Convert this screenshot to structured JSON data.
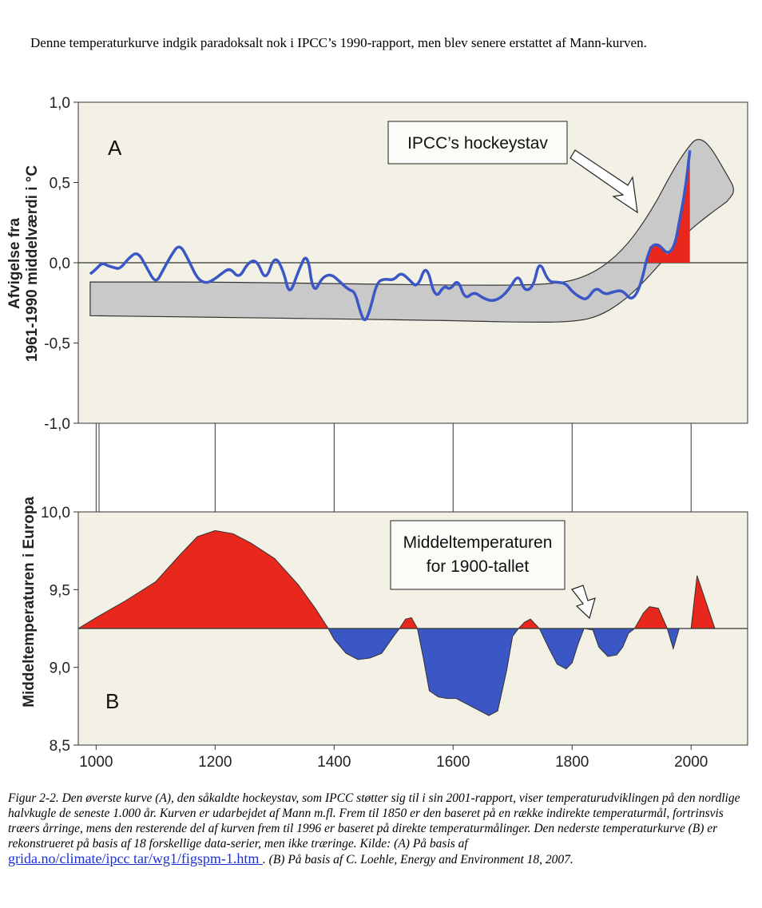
{
  "intro_text": "Denne temperaturkurve indgik paradoksalt nok i IPCC’s 1990-rapport, men blev senere erstattet af Mann-kurven.",
  "colors": {
    "panel_bg": "#f3f1e6",
    "blue": "#3b56c5",
    "red": "#e8281c",
    "band": "#c9c9c9",
    "axis": "#333333"
  },
  "chart_data": [
    {
      "type": "line",
      "panel_label": "A",
      "ylabel_line1": "Afvigelse fra",
      "ylabel_line2": "1961-1990 middelværdi i °C",
      "xlim": [
        970,
        2095
      ],
      "ylim": [
        -1.0,
        1.0
      ],
      "y_ticks": [
        1.0,
        0.5,
        0.0,
        -0.5,
        -1.0
      ],
      "y_tick_labels": [
        "1,0",
        "0,5",
        "0,0",
        "-0,5",
        "-1,0"
      ],
      "baseline": 0.0,
      "annotation": "IPCC’s hockeystav",
      "uncertainty_band": {
        "upper": [
          [
            990,
            -0.12
          ],
          [
            1200,
            -0.12
          ],
          [
            1400,
            -0.13
          ],
          [
            1600,
            -0.14
          ],
          [
            1750,
            -0.14
          ],
          [
            1820,
            -0.1
          ],
          [
            1880,
            0.05
          ],
          [
            1930,
            0.3
          ],
          [
            1970,
            0.58
          ],
          [
            1995,
            0.72
          ],
          [
            2010,
            0.78
          ],
          [
            2030,
            0.74
          ],
          [
            2060,
            0.55
          ],
          [
            2075,
            0.45
          ],
          [
            2060,
            0.38
          ]
        ],
        "lower": [
          [
            990,
            -0.33
          ],
          [
            1200,
            -0.34
          ],
          [
            1400,
            -0.35
          ],
          [
            1600,
            -0.36
          ],
          [
            1700,
            -0.37
          ],
          [
            1800,
            -0.37
          ],
          [
            1850,
            -0.33
          ],
          [
            1900,
            -0.2
          ],
          [
            1950,
            0.0
          ],
          [
            1990,
            0.18
          ],
          [
            2030,
            0.3
          ],
          [
            2060,
            0.38
          ]
        ]
      },
      "series": [
        {
          "x": [
            990,
            1000,
            1010,
            1020,
            1030,
            1040,
            1055,
            1070,
            1085,
            1100,
            1112,
            1125,
            1140,
            1155,
            1170,
            1185,
            1200,
            1210,
            1225,
            1240,
            1255,
            1270,
            1285,
            1300,
            1315,
            1325,
            1340,
            1355,
            1365,
            1380,
            1395,
            1410,
            1425,
            1435,
            1445,
            1452,
            1460,
            1472,
            1485,
            1500,
            1512,
            1525,
            1540,
            1555,
            1570,
            1585,
            1595,
            1608,
            1620,
            1635,
            1650,
            1665,
            1680,
            1695,
            1710,
            1720,
            1735,
            1745,
            1760,
            1775,
            1790,
            1800,
            1815,
            1825,
            1840,
            1855,
            1870,
            1885,
            1900,
            1915,
            1930,
            1945,
            1960,
            1972,
            1980,
            1990,
            1998
          ],
          "y": [
            -0.07,
            -0.04,
            0.0,
            -0.02,
            -0.03,
            -0.04,
            0.03,
            0.07,
            -0.03,
            -0.13,
            -0.05,
            0.04,
            0.12,
            0.02,
            -0.1,
            -0.13,
            -0.1,
            -0.07,
            -0.03,
            -0.1,
            0.0,
            0.02,
            -0.12,
            0.05,
            -0.05,
            -0.21,
            -0.05,
            0.07,
            -0.2,
            -0.09,
            -0.07,
            -0.12,
            -0.17,
            -0.18,
            -0.32,
            -0.37,
            -0.3,
            -0.12,
            -0.1,
            -0.11,
            -0.06,
            -0.1,
            -0.16,
            0.0,
            -0.23,
            -0.14,
            -0.17,
            -0.1,
            -0.23,
            -0.18,
            -0.22,
            -0.24,
            -0.22,
            -0.16,
            -0.07,
            -0.18,
            -0.15,
            0.02,
            -0.12,
            -0.12,
            -0.13,
            -0.18,
            -0.22,
            -0.23,
            -0.15,
            -0.2,
            -0.18,
            -0.17,
            -0.24,
            -0.15,
            0.1,
            0.12,
            0.05,
            0.1,
            0.25,
            0.45,
            0.7
          ]
        }
      ]
    },
    {
      "type": "area",
      "panel_label": "B",
      "ylabel_line1": "Middeltemperaturen",
      "ylabel_line2": "i Europa",
      "xlim": [
        970,
        2095
      ],
      "ylim": [
        8.5,
        10.0
      ],
      "y_ticks": [
        10.0,
        9.5,
        9.0,
        8.5
      ],
      "y_tick_labels": [
        "10,0",
        "9,5",
        "9,0",
        "8,5"
      ],
      "baseline": 9.25,
      "annotation_line1": "Middeltemperaturen",
      "annotation_line2": "for 1900-tallet",
      "x_ticks": [
        1000,
        1200,
        1400,
        1600,
        1800,
        2000
      ],
      "x_tick_labels": [
        "1000",
        "1200",
        "1400",
        "1600",
        "1800",
        "2000"
      ],
      "series": [
        {
          "x": [
            970,
            1000,
            1050,
            1100,
            1140,
            1170,
            1200,
            1230,
            1260,
            1300,
            1340,
            1370,
            1390,
            1400,
            1420,
            1440,
            1460,
            1480,
            1500,
            1510,
            1520,
            1530,
            1540,
            1550,
            1560,
            1575,
            1590,
            1605,
            1620,
            1640,
            1660,
            1675,
            1690,
            1700,
            1710,
            1720,
            1730,
            1745,
            1760,
            1775,
            1790,
            1800,
            1810,
            1820,
            1835,
            1845,
            1860,
            1875,
            1885,
            1895,
            1905,
            1920,
            1930,
            1945,
            1960,
            1970,
            1980,
            1990,
            2000,
            2010,
            2040,
            2095
          ],
          "y": [
            9.25,
            9.32,
            9.43,
            9.55,
            9.72,
            9.84,
            9.88,
            9.86,
            9.8,
            9.7,
            9.53,
            9.37,
            9.25,
            9.18,
            9.09,
            9.05,
            9.06,
            9.09,
            9.2,
            9.25,
            9.31,
            9.32,
            9.25,
            9.06,
            8.85,
            8.81,
            8.8,
            8.8,
            8.77,
            8.73,
            8.69,
            8.72,
            8.98,
            9.2,
            9.25,
            9.29,
            9.31,
            9.25,
            9.13,
            9.02,
            8.99,
            9.03,
            9.15,
            9.25,
            9.24,
            9.13,
            9.07,
            9.08,
            9.13,
            9.22,
            9.25,
            9.35,
            9.39,
            9.38,
            9.25,
            9.12,
            9.25,
            9.25,
            9.25,
            9.59,
            9.25,
            9.25
          ]
        }
      ]
    }
  ],
  "caption_text": "Figur 2-2. Den øverste kurve (A), den såkaldte hockeystav, som IPCC støtter sig til i sin 2001-rapport, viser temperaturudviklingen på den nordlige halvkugle de seneste 1.000 år. Kurven er udarbejdet af Mann m.fl. Frem til 1850 er den baseret på en række indirekte temperaturmål, fortrinsvis træers årringe, mens den resterende del af kurven frem til 1996 er baseret på direkte temperaturmålinger. Den nederste temperaturkurve (B) er rekonstrueret på basis af 18 forskellige data-serier, men ikke træringe. Kilde: (A) På basis af",
  "caption_link": "grida.no/climate/ipcc tar/wg1/figspm-1.htm ",
  "caption_tail": ". (B) På basis af C. Loehle, Energy and Environment 18, 2007."
}
